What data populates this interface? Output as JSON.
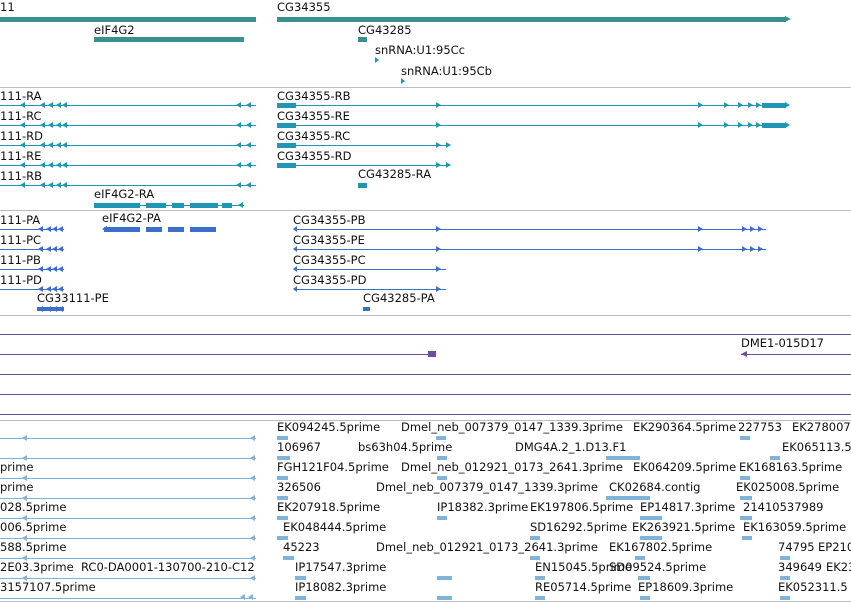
{
  "colors": {
    "gene": "#3a8f8f",
    "transcript": "#1f97b4",
    "protein": "#3c6fcc",
    "insertion": "#6a4fa0",
    "est": "#7fb3d9",
    "separator": "#bdbdbd"
  },
  "tracks": {
    "genes": [
      "11",
      "eIF4G2",
      "CG34355",
      "CG43285",
      "snRNA:U1:95Cc",
      "snRNA:U1:95Cb"
    ],
    "transcripts": [
      "111-RA",
      "111-RC",
      "111-RD",
      "111-RE",
      "111-RB",
      "eIF4G2-RA",
      "CG34355-RB",
      "CG34355-RE",
      "CG34355-RC",
      "CG34355-RD",
      "CG43285-RA"
    ],
    "proteins": [
      "111-PA",
      "111-PC",
      "111-PB",
      "111-PD",
      "CG33111-PE",
      "eIF4G2-PA",
      "CG34355-PB",
      "CG34355-PE",
      "CG34355-PC",
      "CG34355-PD",
      "CG43285-PA"
    ],
    "insertions": [
      "DME1-015D17"
    ],
    "ests": [
      "EK094245.5prime",
      "Dmel_neb_007379_0147_1339.3prime",
      "EK290364.5prime",
      "227753",
      "EK278007",
      "106967",
      "bs63h04.5prime",
      "DMG4A.2_1.D13.F1",
      "EK065113.5",
      "prime",
      "FGH121F04.5prime",
      "Dmel_neb_012921_0173_2641.3prime",
      "EK064209.5prime",
      "EK168163.5prime",
      "prime",
      "326506",
      "Dmel_neb_007379_0147_1339.3prime",
      "CK02684.contig",
      "EK025008.5prime",
      "028.5prime",
      "EK207918.5prime",
      "IP18382.3prime",
      "EK197806.5prime",
      "EP14817.3prime",
      "21410537989",
      "006.5prime",
      "EK048444.5prime",
      "SD16292.5prime",
      "EK263921.5prime",
      "EK163059.5prime",
      "588.5prime",
      "45223",
      "Dmel_neb_012921_0173_2641.3prime",
      "EK167802.5prime",
      "74795",
      "EP210",
      "2E03.3prime",
      "RC0-DA0001-130700-210-C12",
      "IP17547.3prime",
      "EN15045.5prime",
      "SD09524.5prime",
      "349649",
      "EK23",
      "3157107.5prime",
      "IP18082.3prime",
      "RE05714.5prime",
      "EP18609.3prime",
      "EK052311.5"
    ]
  }
}
